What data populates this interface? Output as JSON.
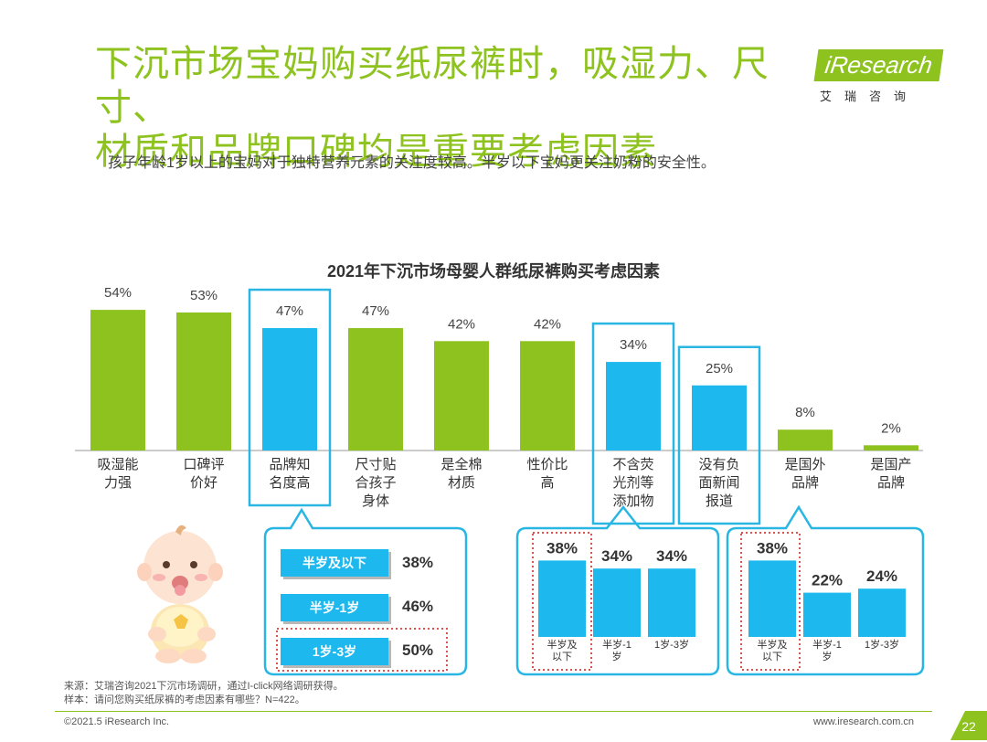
{
  "header": {
    "title_line1": "下沉市场宝妈购买纸尿裤时，吸湿力、尺寸、",
    "title_line2": "材质和品牌口碑均是重要考虑因素",
    "subtitle": "孩子年龄1岁以上的宝妈对于独特营养元素的关注度较高。半岁以下宝妈更关注奶粉的安全性。",
    "logo_text": "iResearch",
    "logo_sub": "艾瑞咨询"
  },
  "colors": {
    "green": "#8dc21f",
    "blue": "#1cb8ee",
    "highlight_border": "#29b6e3",
    "dotted_red": "#d9534f"
  },
  "chart_data": [
    {
      "type": "bar",
      "title": "2021年下沉市场母婴人群纸尿裤购买考虑因素",
      "categories": [
        "吸湿能力强",
        "口碑评价好",
        "品牌知名度高",
        "尺寸贴合孩子身体",
        "是全棉材质",
        "性价比高",
        "不含荧光剂等添加物",
        "没有负面新闻报道",
        "是国外品牌",
        "是国产品牌"
      ],
      "category_lines": [
        [
          "吸湿能",
          "力强"
        ],
        [
          "口碑评",
          "价好"
        ],
        [
          "品牌知",
          "名度高"
        ],
        [
          "尺寸贴",
          "合孩子",
          "身体"
        ],
        [
          "是全棉",
          "材质"
        ],
        [
          "性价比",
          "高"
        ],
        [
          "不含荧",
          "光剂等",
          "添加物"
        ],
        [
          "没有负",
          "面新闻",
          "报道"
        ],
        [
          "是国外",
          "品牌"
        ],
        [
          "是国产",
          "品牌"
        ]
      ],
      "values": [
        54,
        53,
        47,
        47,
        42,
        42,
        34,
        25,
        8,
        2
      ],
      "labels": [
        "54%",
        "53%",
        "47%",
        "47%",
        "42%",
        "42%",
        "34%",
        "25%",
        "8%",
        "2%"
      ],
      "highlighted": [
        2,
        6,
        7
      ],
      "ylim": [
        0,
        60
      ]
    },
    {
      "type": "bar",
      "categories": [
        "半岁及以下",
        "半岁-1岁",
        "1岁-3岁"
      ],
      "values": [
        38,
        46,
        50
      ],
      "labels": [
        "38%",
        "46%",
        "50%"
      ],
      "related_to": "品牌知名度高"
    },
    {
      "type": "bar",
      "categories": [
        "半岁及以下",
        "半岁-1岁",
        "1岁-3岁"
      ],
      "category_lines": [
        [
          "半岁及",
          "以下"
        ],
        [
          "半岁-1",
          "岁"
        ],
        [
          "1岁-3岁"
        ]
      ],
      "values": [
        38,
        34,
        34
      ],
      "labels": [
        "38%",
        "34%",
        "34%"
      ],
      "related_to": "不含荧光剂等添加物",
      "ylim": [
        0,
        50
      ]
    },
    {
      "type": "bar",
      "categories": [
        "半岁及以下",
        "半岁-1岁",
        "1岁-3岁"
      ],
      "category_lines": [
        [
          "半岁及",
          "以下"
        ],
        [
          "半岁-1",
          "岁"
        ],
        [
          "1岁-3岁"
        ]
      ],
      "values": [
        38,
        22,
        24
      ],
      "labels": [
        "38%",
        "22%",
        "24%"
      ],
      "related_to": "没有负面新闻报道",
      "ylim": [
        0,
        50
      ]
    }
  ],
  "footer": {
    "source": "来源：艾瑞咨询2021下沉市场调研，通过I-click网络调研获得。",
    "sample": "样本：请问您购买纸尿裤的考虑因素有哪些？N=422。",
    "copyright": "©2021.5 iResearch Inc.",
    "site": "www.iresearch.com.cn",
    "page": "22"
  }
}
